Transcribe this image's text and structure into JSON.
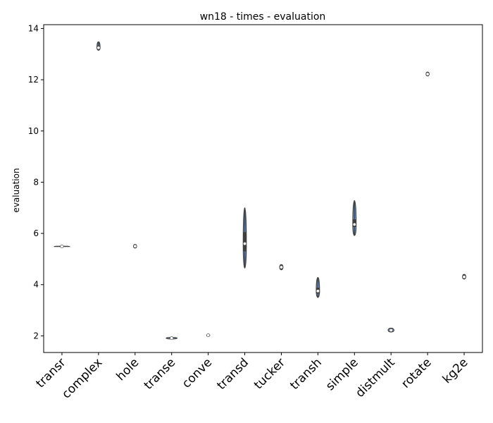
{
  "chart_data": {
    "type": "violin",
    "title": "wn18 - times - evaluation",
    "xlabel": "",
    "ylabel": "evaluation",
    "ylim": [
      1.35,
      14.15
    ],
    "yticks": [
      2,
      4,
      6,
      8,
      10,
      12,
      14
    ],
    "grid": false,
    "legend": "none",
    "categories": [
      "transr",
      "complex",
      "hole",
      "transe",
      "conve",
      "transd",
      "tucker",
      "transh",
      "simple",
      "distmult",
      "rotate",
      "kg2e"
    ],
    "series": [
      {
        "values": [
          {
            "min": 5.49,
            "q1": 5.49,
            "median": 5.49,
            "q3": 5.5,
            "max": 5.5,
            "width": 0.42
          },
          {
            "min": 13.15,
            "q1": 13.22,
            "median": 13.25,
            "q3": 13.33,
            "max": 13.48,
            "width": 0.08
          },
          {
            "min": 5.43,
            "q1": 5.46,
            "median": 5.5,
            "q3": 5.55,
            "max": 5.57,
            "width": 0.07
          },
          {
            "min": 1.88,
            "q1": 1.9,
            "median": 1.91,
            "q3": 1.92,
            "max": 1.94,
            "width": 0.3
          },
          {
            "min": 1.98,
            "q1": 2.0,
            "median": 2.02,
            "q3": 2.04,
            "max": 2.06,
            "width": 0.08
          },
          {
            "min": 4.65,
            "q1": 5.3,
            "median": 5.6,
            "q3": 6.05,
            "max": 7.0,
            "width": 0.06
          },
          {
            "min": 4.58,
            "q1": 4.63,
            "median": 4.68,
            "q3": 4.74,
            "max": 4.78,
            "width": 0.09
          },
          {
            "min": 3.5,
            "q1": 3.65,
            "median": 3.75,
            "q3": 3.88,
            "max": 4.28,
            "width": 0.09
          },
          {
            "min": 5.92,
            "q1": 6.25,
            "median": 6.35,
            "q3": 6.55,
            "max": 7.28,
            "width": 0.09
          },
          {
            "min": 2.15,
            "q1": 2.18,
            "median": 2.22,
            "q3": 2.26,
            "max": 2.3,
            "width": 0.16
          },
          {
            "min": 12.15,
            "q1": 12.18,
            "median": 12.22,
            "q3": 12.26,
            "max": 12.3,
            "width": 0.08
          },
          {
            "min": 4.22,
            "q1": 4.25,
            "median": 4.3,
            "q3": 4.36,
            "max": 4.4,
            "width": 0.09
          }
        ]
      }
    ]
  }
}
